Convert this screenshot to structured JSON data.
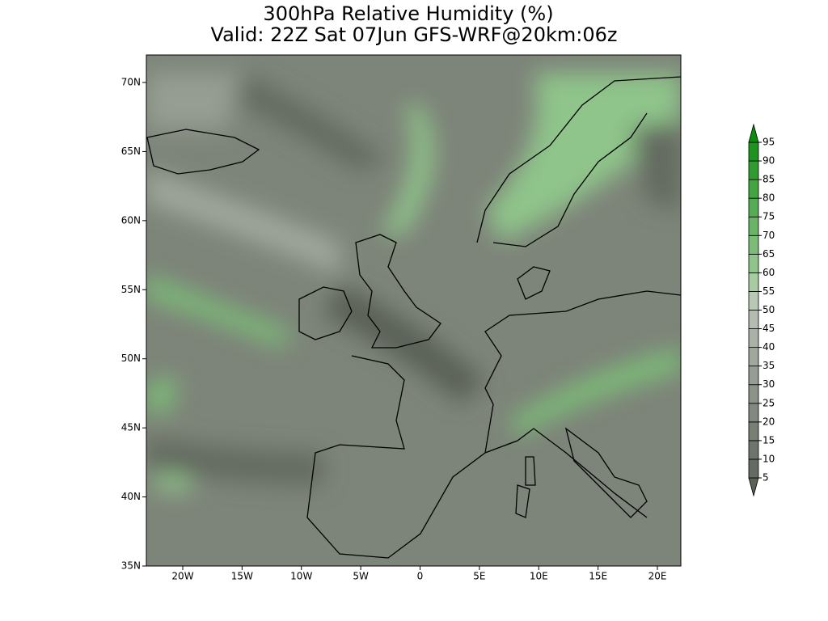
{
  "title": "300hPa Relative Humidity (%)",
  "subtitle": "Valid: 22Z Sat 07Jun GFS-WRF@20km:06z",
  "lat_labels": [
    "70N",
    "65N",
    "60N",
    "55N",
    "50N",
    "45N",
    "40N",
    "35N"
  ],
  "lon_labels": [
    "20W",
    "15W",
    "10W",
    "5W",
    "0",
    "5E",
    "10E",
    "15E",
    "20E"
  ],
  "colorbar": {
    "levels": [
      5,
      10,
      15,
      20,
      25,
      30,
      35,
      40,
      45,
      50,
      55,
      60,
      65,
      70,
      75,
      80,
      85,
      90,
      95
    ],
    "colors": [
      "#5a6156",
      "#646b60",
      "#6e756a",
      "#787f74",
      "#82897e",
      "#8c9388",
      "#969d92",
      "#a0a79c",
      "#aab1a6",
      "#b4bbb0",
      "#b9c7b5",
      "#a6cca0",
      "#8fc48a",
      "#7cbc78",
      "#69b466",
      "#56ac54",
      "#43a442",
      "#309c30",
      "#1d941e",
      "#0b8c0c"
    ]
  }
}
